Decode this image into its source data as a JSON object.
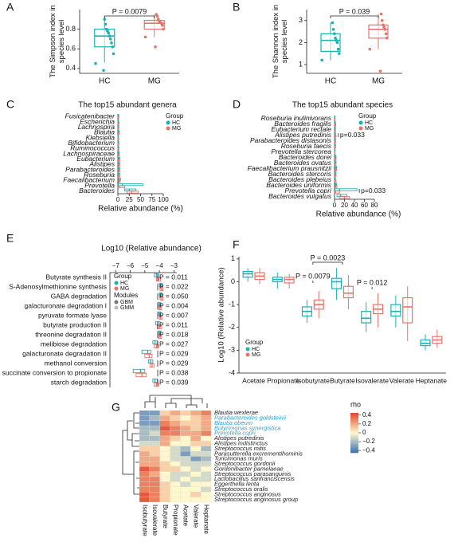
{
  "chart_data": [
    {
      "type": "box",
      "panel": "A",
      "ylabel": [
        "The Simpson index in",
        "species level"
      ],
      "categories": [
        "HC",
        "MG"
      ],
      "colors": [
        "#1ab3b3",
        "#e8736b"
      ],
      "min": [
        0.46,
        0.72
      ],
      "q1": [
        0.62,
        0.8
      ],
      "median": [
        0.73,
        0.86
      ],
      "q3": [
        0.8,
        0.89
      ],
      "max": [
        0.92,
        0.95
      ],
      "points": [
        [
          0.45,
          0.55,
          0.62,
          0.66,
          0.7,
          0.73,
          0.76,
          0.78,
          0.8,
          0.85,
          0.9,
          0.38
        ],
        [
          0.72,
          0.8,
          0.84,
          0.86,
          0.87,
          0.88,
          0.9,
          0.93,
          0.95,
          0.62
        ]
      ],
      "ylim": [
        0.35,
        1.0
      ],
      "yticks": [
        0.4,
        0.6,
        0.8
      ],
      "annotations": [
        "P = 0.0079"
      ]
    },
    {
      "type": "box",
      "panel": "B",
      "ylabel": [
        "The Shannon index in",
        "species level"
      ],
      "categories": [
        "HC",
        "MG"
      ],
      "colors": [
        "#1ab3b3",
        "#e8736b"
      ],
      "min": [
        1.2,
        1.7
      ],
      "q1": [
        1.6,
        2.2
      ],
      "median": [
        2.1,
        2.6
      ],
      "q3": [
        2.4,
        2.8
      ],
      "max": [
        2.9,
        3.3
      ],
      "points": [
        [
          1.2,
          1.5,
          1.7,
          2.0,
          2.1,
          2.2,
          2.4,
          2.6,
          2.9
        ],
        [
          1.7,
          2.2,
          2.4,
          2.6,
          2.7,
          2.8,
          3.0,
          3.3,
          0.7
        ]
      ],
      "ylim": [
        0.6,
        3.5
      ],
      "yticks": [
        1,
        2,
        3
      ],
      "annotations": [
        "P = 0.039"
      ]
    },
    {
      "type": "hbox",
      "panel": "C",
      "title": "The top15 abundant genera",
      "xlabel": "Relative abundance (%)",
      "italic": true,
      "categories": [
        "Fusicatenibacter",
        "Escherichia",
        "Lachnospira",
        "Blautia",
        "Klebsiella",
        "Bifidobacterium",
        "Ruminococcus",
        "Lachnospiraceae",
        "Eubacterium",
        "Alistipes",
        "Parabacteroides",
        "Roseburia",
        "Faecalibacterium",
        "Prevotella",
        "Bacteroides"
      ],
      "legend_title": "Group",
      "series": [
        {
          "name": "HC",
          "color": "#1ab3b3",
          "q1": [
            0.5,
            0.2,
            0.5,
            0.8,
            0.1,
            0.3,
            0.3,
            1,
            1,
            1,
            1,
            1,
            2,
            1,
            15
          ],
          "median": [
            1,
            0.5,
            1,
            1.5,
            0.3,
            0.8,
            0.8,
            2,
            2,
            2,
            2,
            2,
            3,
            10,
            25
          ],
          "q3": [
            2,
            1.5,
            2,
            3,
            1,
            2,
            2,
            3,
            4,
            4,
            4,
            4,
            6,
            55,
            40
          ]
        },
        {
          "name": "MG",
          "color": "#e8736b",
          "q1": [
            0.4,
            0.3,
            0.5,
            0.8,
            0.2,
            0.3,
            0.3,
            1,
            1,
            1,
            1,
            1,
            1.5,
            0.5,
            20
          ],
          "median": [
            0.9,
            0.8,
            1,
            1.5,
            0.5,
            0.8,
            0.8,
            2,
            2,
            2,
            2,
            2,
            2.5,
            2,
            30
          ],
          "q3": [
            2,
            3,
            2,
            3,
            2,
            2,
            2,
            3,
            4,
            4,
            4,
            4,
            5,
            15,
            45
          ]
        }
      ],
      "xlim": [
        0,
        100
      ],
      "xticks": [
        0,
        25,
        50,
        75,
        100
      ]
    },
    {
      "type": "hbox",
      "panel": "D",
      "title": "The top15 abundant species",
      "xlabel": "Relative abundance (%)",
      "italic": true,
      "categories": [
        "Roseburia inulinivorans",
        "Bacteroides fragilis",
        "Eubacterium rectale",
        "Alistipes putredinis",
        "Parabacteroides distasonis",
        "Roseburia faecis",
        "Prevotella stercorea",
        "Bacteroides dorei",
        "Bacteroides ovatus",
        "Faecalibacterium prausnitzii",
        "Bacteroides stercoris",
        "Bacteroides plebeius",
        "Bacteroides uniformis",
        "Prevotella copri",
        "Bacteroides vulgatus"
      ],
      "p_labels": [
        null,
        null,
        null,
        "p=0.033",
        null,
        null,
        null,
        null,
        null,
        null,
        null,
        null,
        null,
        "p=0.033",
        null
      ],
      "legend_title": "Group",
      "series": [
        {
          "name": "HC",
          "color": "#1ab3b3",
          "q1": [
            0.2,
            0.3,
            0.3,
            0.3,
            0.3,
            0.3,
            0.1,
            0.5,
            0.5,
            1,
            0.5,
            0.2,
            1,
            1,
            5
          ],
          "median": [
            0.5,
            0.8,
            0.8,
            1,
            0.8,
            0.8,
            0.3,
            1,
            1,
            2,
            1,
            0.5,
            2,
            10,
            12
          ],
          "q3": [
            1,
            2,
            2,
            2,
            2,
            2,
            1,
            3,
            3,
            4,
            3,
            2,
            4,
            45,
            25
          ]
        },
        {
          "name": "MG",
          "color": "#e8736b",
          "q1": [
            0.2,
            0.4,
            0.3,
            0.5,
            0.3,
            0.3,
            0.1,
            0.5,
            0.5,
            1,
            0.5,
            0.3,
            1,
            0.5,
            10
          ],
          "median": [
            0.5,
            1,
            0.8,
            1.5,
            1,
            0.8,
            0.3,
            1.5,
            1,
            2,
            1.5,
            1,
            2.5,
            2,
            20
          ],
          "q3": [
            1,
            2.5,
            2,
            3,
            2,
            2,
            1,
            3,
            3,
            4,
            3,
            3,
            5,
            10,
            30
          ]
        }
      ],
      "xlim": [
        0,
        80
      ],
      "xticks": [
        0,
        20,
        40,
        60,
        80
      ]
    },
    {
      "type": "hbox",
      "panel": "E",
      "title": "Log10 (Relative abundance)",
      "xaxis_top": true,
      "categories": [
        "Butyrate synthesis II",
        "S-Adenosylmethionine synthesis",
        "GABA degradation",
        "galacturonate degradation I",
        "pyruvate formate lyase",
        "butyrate production II",
        "threonine degradation II",
        "melibiose degradation",
        "galacturonate degradation II",
        "methanol conversion",
        "succinate conversion to propionate",
        "starch degradation"
      ],
      "p_labels": [
        "P = 0.011",
        "P = 0.022",
        "P = 0.050",
        "P = 0.004",
        "P = 0.007",
        "P = 0.011",
        "P = 0.018",
        "P = 0.027",
        "P = 0.029",
        "P = 0.029",
        "P = 0.038",
        "P = 0.039"
      ],
      "legend_title": "Group",
      "modules_title": "Modules",
      "modules": [
        "GBM",
        "GMM"
      ],
      "module_colors": [
        "#777777",
        "#bbbbbb"
      ],
      "series": [
        {
          "name": "HC",
          "color": "#1ab3b3",
          "q1": [
            -4.35,
            -4.0,
            -4.0,
            -4.1,
            -4.1,
            -4.25,
            -4.1,
            -4.45,
            -5.2,
            -4.75,
            -5.8,
            -4.45
          ],
          "median": [
            -4.2,
            -3.9,
            -3.9,
            -4.0,
            -4.0,
            -4.1,
            -4.0,
            -4.3,
            -4.8,
            -4.6,
            -5.3,
            -4.3
          ],
          "q3": [
            -4.05,
            -3.8,
            -3.8,
            -3.9,
            -3.9,
            -3.95,
            -3.9,
            -4.15,
            -4.6,
            -4.45,
            -5.0,
            -4.15
          ]
        },
        {
          "name": "MG",
          "color": "#e8736b",
          "q1": [
            -4.2,
            -3.95,
            -3.95,
            -4.05,
            -4.0,
            -4.15,
            -4.05,
            -4.35,
            -5.0,
            -4.65,
            -5.6,
            -4.35
          ],
          "median": [
            -4.05,
            -3.85,
            -3.85,
            -3.95,
            -3.9,
            -4.0,
            -3.95,
            -4.2,
            -4.7,
            -4.5,
            -5.2,
            -4.2
          ],
          "q3": [
            -3.9,
            -3.75,
            -3.75,
            -3.85,
            -3.8,
            -3.85,
            -3.85,
            -4.05,
            -4.5,
            -4.35,
            -4.9,
            -4.05
          ]
        }
      ],
      "xlim": [
        -7.4,
        -2.8
      ],
      "xticks": [
        {
          "value": -7,
          "label": "−7"
        },
        {
          "value": -6,
          "label": "−6"
        },
        {
          "value": -5,
          "label": "−5"
        },
        {
          "value": -4,
          "label": "−4"
        },
        {
          "value": -3,
          "label": "−3"
        }
      ]
    },
    {
      "type": "box",
      "panel": "F",
      "ylabel": [
        "Log10 (Relative abundance)"
      ],
      "categories": [
        "Acetate",
        "Propionate",
        "Isobutyrate",
        "Butyrate",
        "Isovalerate",
        "Valerate",
        "Heptanate"
      ],
      "legend_title": "Group",
      "series": [
        {
          "name": "HC",
          "color": "#1ab3b3",
          "min": [
            0,
            -0.3,
            -1.8,
            -0.8,
            -2.2,
            -2.0,
            -3.0
          ],
          "q1": [
            0.2,
            0,
            -1.5,
            -0.3,
            -1.8,
            -1.5,
            -2.8
          ],
          "median": [
            0.35,
            0.1,
            -1.3,
            0,
            -1.6,
            -1.3,
            -2.7
          ],
          "q3": [
            0.45,
            0.2,
            -1.1,
            0.15,
            -1.3,
            -1.0,
            -2.55
          ],
          "max": [
            0.6,
            0.4,
            -0.8,
            0.6,
            -0.9,
            -0.6,
            -2.3
          ]
        },
        {
          "name": "MG",
          "color": "#e8736b",
          "min": [
            -0.1,
            -0.3,
            -1.6,
            -1.2,
            -2.0,
            -2.6,
            -2.9
          ],
          "q1": [
            0.1,
            -0.05,
            -1.2,
            -0.7,
            -1.4,
            -1.8,
            -2.7
          ],
          "median": [
            0.25,
            0.1,
            -1.0,
            -0.5,
            -1.2,
            -1.1,
            -2.55
          ],
          "q3": [
            0.4,
            0.2,
            -0.8,
            -0.2,
            -1.0,
            -0.7,
            -2.4
          ],
          "max": [
            0.6,
            0.35,
            -0.4,
            0.3,
            -0.5,
            -0.2,
            -2.1
          ]
        }
      ],
      "annotations": [
        "P = 0.0079",
        "P = 0.0023",
        "P = 0.012"
      ],
      "ylim": [
        -4,
        1.1
      ],
      "yticks": [
        1,
        0,
        -1,
        -2,
        -3,
        -4
      ]
    },
    {
      "type": "heatmap",
      "panel": "G",
      "rows": [
        "Blautia wexlerae",
        "Parabacteroides goldsteinii",
        "Blautia obeum",
        "Butyrimonas synergistica",
        "Prevotella copri",
        "Alistipes putredinis",
        "Alistipes indistinctus",
        "Streptococcus mitis",
        "Parasutterella excrementihominis",
        "Turicimonas muris",
        "Streptococcus gordonii",
        "Gordonibacter pamelaeae",
        "Streptococcus parasanguinis",
        "Lactobacillus sanfranciscensis",
        "Eggerthella lenta",
        "Streptococcus oralis",
        "Streptococcus anginosus",
        "Streptococcus anginosus group"
      ],
      "row_label_colors": [
        "#222222",
        "#29a3d6",
        "#29a3d6",
        "#29a3d6",
        "#29a3d6",
        "#222222",
        "#222222",
        "#222222",
        "#222222",
        "#222222",
        "#222222",
        "#222222",
        "#222222",
        "#222222",
        "#222222",
        "#222222",
        "#222222",
        "#222222"
      ],
      "columns": [
        "Isobutyrate",
        "Isovalerate",
        "Butyrate",
        "Propionate",
        "Acetate",
        "Valerate",
        "Heptanate"
      ],
      "values": [
        [
          -0.3,
          -0.3,
          0.1,
          0.2,
          0.1,
          0.2,
          0.3
        ],
        [
          -0.3,
          -0.2,
          0.2,
          0.1,
          0,
          0.1,
          0.2
        ],
        [
          -0.3,
          -0.3,
          0.3,
          0.2,
          0.1,
          0.1,
          0.2
        ],
        [
          -0.2,
          -0.2,
          0.4,
          0.3,
          0.2,
          0.1,
          0.2
        ],
        [
          -0.2,
          -0.1,
          0.3,
          0.3,
          0.2,
          0.2,
          0.3
        ],
        [
          -0.2,
          -0.2,
          0.2,
          0.1,
          0,
          0.2,
          0
        ],
        [
          -0.1,
          -0.1,
          0.2,
          0,
          0,
          0.1,
          0.1
        ],
        [
          0.1,
          0.1,
          0,
          -0.1,
          -0.2,
          0,
          -0.2
        ],
        [
          0.2,
          0.1,
          0,
          -0.1,
          -0.3,
          -0.1,
          -0.1
        ],
        [
          0.2,
          0.2,
          0,
          -0.1,
          -0.1,
          -0.3,
          -0.2
        ],
        [
          0.2,
          0.2,
          0.1,
          0,
          -0.1,
          -0.1,
          -0.1
        ],
        [
          0.4,
          0.3,
          0.1,
          0.1,
          0,
          -0.1,
          0
        ],
        [
          0.3,
          0.2,
          0,
          -0.1,
          -0.1,
          0,
          -0.1
        ],
        [
          0.3,
          0.3,
          0,
          -0.1,
          0,
          -0.1,
          -0.1
        ],
        [
          0.3,
          0.3,
          0.1,
          0,
          -0.1,
          0,
          0
        ],
        [
          0.3,
          0.3,
          0.1,
          0,
          0,
          0,
          -0.1
        ],
        [
          0.4,
          0.3,
          0.1,
          0,
          0,
          0.1,
          0
        ],
        [
          0.4,
          0.3,
          0.1,
          0,
          0,
          0,
          0
        ]
      ],
      "colorbar_title": "rho",
      "colormap": [
        "#3b6fb6",
        "#fff8cc",
        "#e3462a"
      ],
      "zlim": [
        -0.45,
        0.45
      ],
      "zticks": [
        0.4,
        0.2,
        0,
        {
          "value": -0.2,
          "label": "−0.2"
        },
        {
          "value": -0.4,
          "label": "−0.4"
        }
      ]
    }
  ]
}
